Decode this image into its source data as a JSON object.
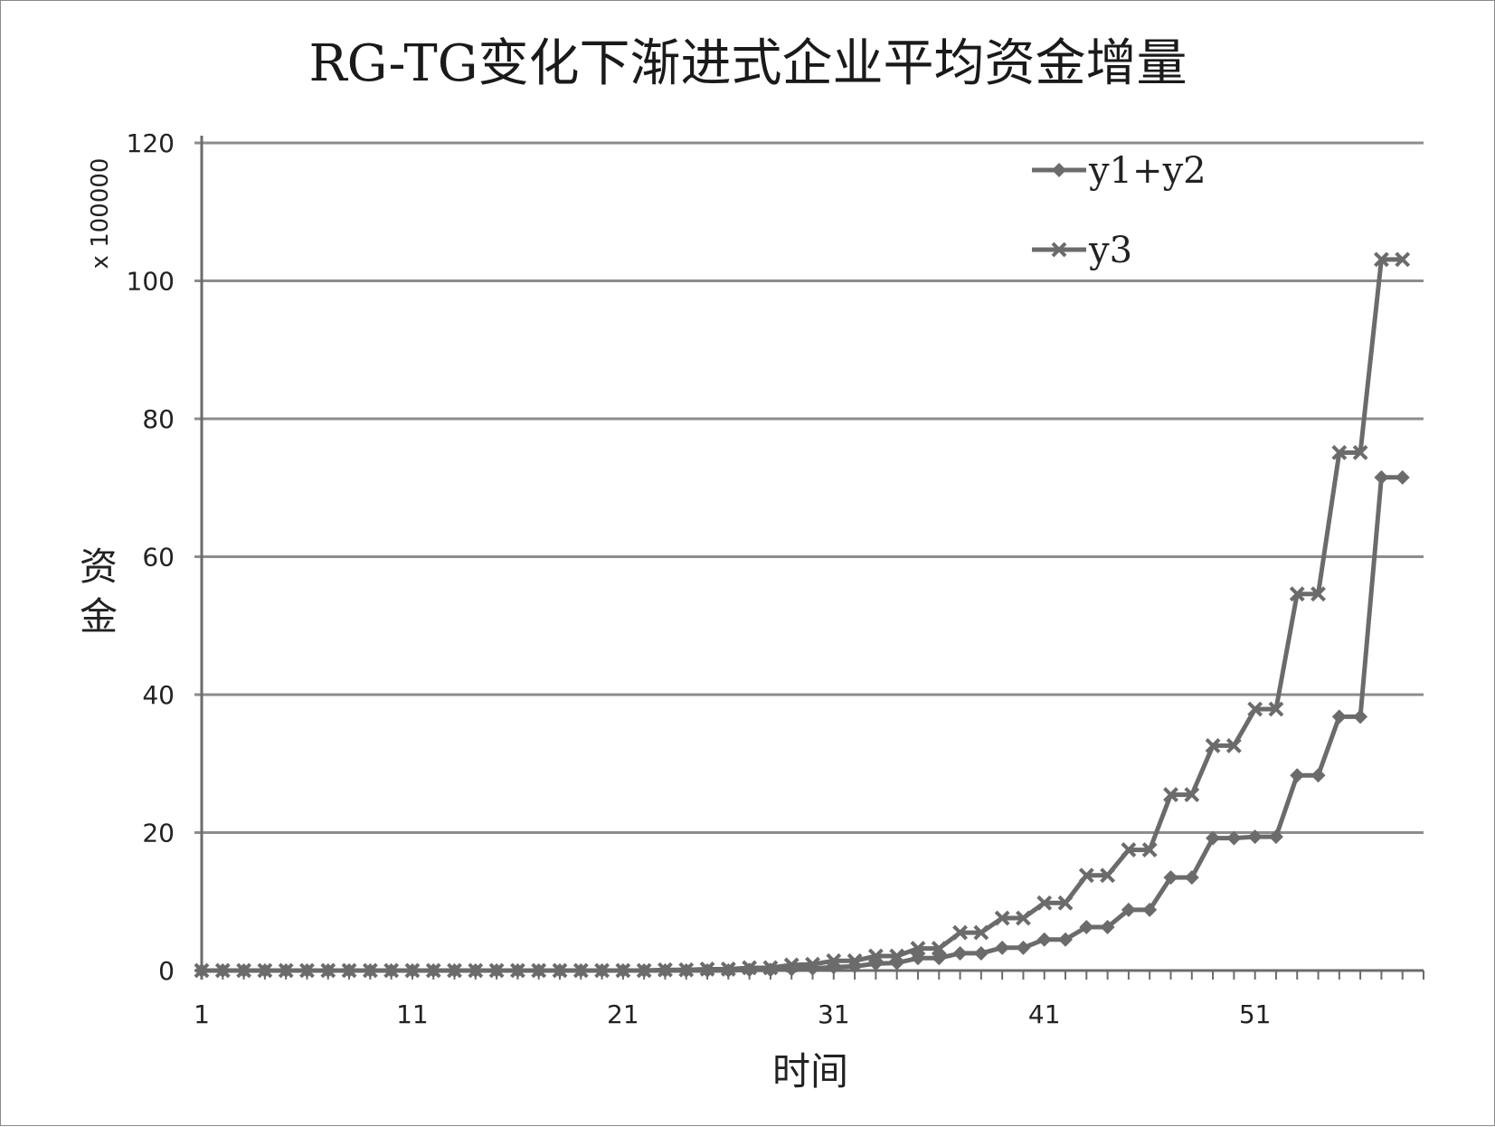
{
  "chart_data": {
    "type": "line",
    "title": "RG-TG变化下渐进式企业平均资金增量",
    "xlabel": "时间",
    "ylabel": "资金",
    "y_unit": "x 100000",
    "ylim": [
      0,
      120
    ],
    "y_ticks": [
      0,
      20,
      40,
      60,
      80,
      100,
      120
    ],
    "xlim": [
      1,
      59
    ],
    "x_ticks": [
      1,
      11,
      21,
      31,
      41,
      51
    ],
    "grid": true,
    "legend_position": "top-right",
    "colors": {
      "series": "#6b6b6b",
      "grid": "#8c8c8c",
      "axis": "#6b6b6b"
    },
    "x": [
      1,
      2,
      3,
      4,
      5,
      6,
      7,
      8,
      9,
      10,
      11,
      12,
      13,
      14,
      15,
      16,
      17,
      18,
      19,
      20,
      21,
      22,
      23,
      24,
      25,
      26,
      27,
      28,
      29,
      30,
      31,
      32,
      33,
      34,
      35,
      36,
      37,
      38,
      39,
      40,
      41,
      42,
      43,
      44,
      45,
      46,
      47,
      48,
      49,
      50,
      51,
      52,
      53,
      54,
      55,
      56,
      57,
      58
    ],
    "series": [
      {
        "name": "y1+y2",
        "marker": "diamond",
        "values": [
          0,
          0,
          0,
          0,
          0,
          0,
          0,
          0,
          0,
          0,
          0,
          0,
          0,
          0,
          0,
          0,
          0,
          0,
          0,
          0,
          0,
          0,
          0,
          0,
          0,
          0,
          0.1,
          0.1,
          0.2,
          0.3,
          0.5,
          0.6,
          1.0,
          1.1,
          1.8,
          1.8,
          2.5,
          2.5,
          3.3,
          3.3,
          4.5,
          4.5,
          6.3,
          6.3,
          8.8,
          8.8,
          13.5,
          13.5,
          19.2,
          19.2,
          19.4,
          19.4,
          28.3,
          28.3,
          36.8,
          36.8,
          71.5,
          71.5
        ]
      },
      {
        "name": "y3",
        "marker": "x",
        "values": [
          0,
          0,
          0,
          0,
          0,
          0,
          0,
          0,
          0,
          0,
          0,
          0,
          0,
          0,
          0,
          0,
          0,
          0,
          0,
          0,
          0,
          0,
          0.1,
          0.1,
          0.2,
          0.2,
          0.4,
          0.4,
          0.8,
          0.9,
          1.4,
          1.4,
          2.1,
          2.1,
          3.2,
          3.2,
          5.5,
          5.5,
          7.6,
          7.6,
          9.8,
          9.8,
          13.8,
          13.8,
          17.5,
          17.5,
          25.5,
          25.5,
          32.6,
          32.6,
          37.9,
          37.9,
          54.6,
          54.6,
          75.1,
          75.1,
          103.1,
          103.1
        ]
      }
    ]
  }
}
